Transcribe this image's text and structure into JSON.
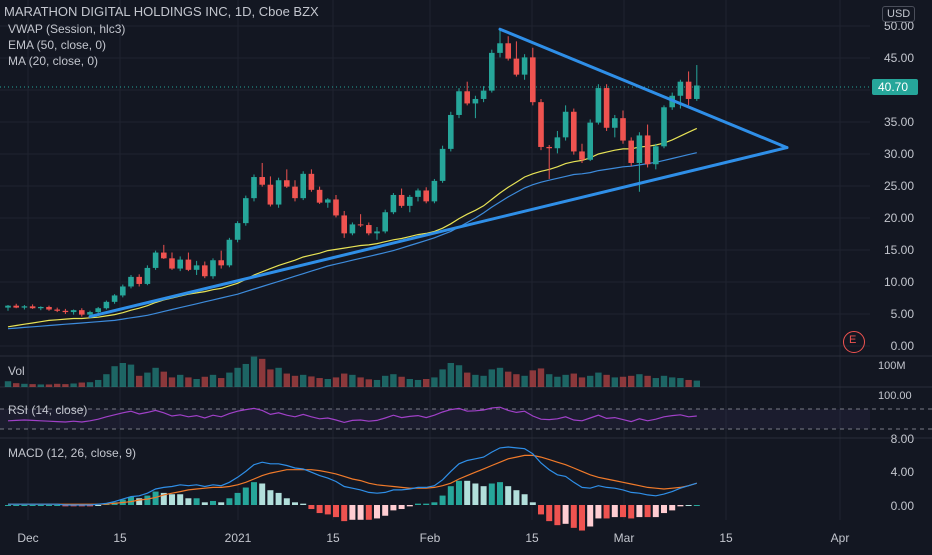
{
  "header": {
    "title": "MARATHON DIGITAL HOLDINGS INC, 1D, Cboe BZX",
    "indicators": [
      "VWAP (Session, hlc3)",
      "EMA (50, close, 0)",
      "MA (20, close, 0)"
    ],
    "currency": "USD",
    "last_price": "40.70",
    "earnings_marker": "E"
  },
  "panes": {
    "vol_label": "Vol",
    "vol_axis": "100M",
    "rsi_label": "RSI (14, close)",
    "rsi_axis": "100.00",
    "macd_label": "MACD (12, 26, close, 9)"
  },
  "colors": {
    "background": "#131722",
    "up": "#26a69a",
    "down": "#ef5350",
    "trendline": "#2f8fe8",
    "ema": "#e7e356",
    "ma": "#3d8bdb",
    "rsi": "#a040c8",
    "macd_line": "#2f8fe8",
    "signal_line": "#f07a2a"
  },
  "chart_data": {
    "type": "candlestick",
    "y_axis_ticks": [
      "50.00",
      "45.00",
      "40.00",
      "35.00",
      "30.00",
      "25.00",
      "20.00",
      "15.00",
      "10.00",
      "5.00",
      "0.00"
    ],
    "x_axis_ticks": [
      "Dec",
      "15",
      "2021",
      "15",
      "Feb",
      "15",
      "Mar",
      "15",
      "Apr"
    ],
    "macd_axis_ticks": [
      "8.00",
      "4.00",
      "0.00"
    ],
    "candles": [
      [
        6.0,
        6.4,
        5.5,
        6.3
      ],
      [
        6.3,
        6.6,
        5.9,
        6.0
      ],
      [
        6.0,
        6.4,
        5.7,
        6.2
      ],
      [
        6.2,
        6.5,
        5.8,
        5.9
      ],
      [
        5.9,
        6.2,
        5.6,
        6.1
      ],
      [
        6.1,
        6.3,
        5.5,
        5.7
      ],
      [
        5.7,
        6.0,
        5.3,
        5.5
      ],
      [
        5.5,
        5.8,
        5.0,
        5.3
      ],
      [
        5.3,
        5.7,
        4.9,
        5.6
      ],
      [
        5.6,
        5.9,
        4.6,
        4.9
      ],
      [
        4.9,
        5.5,
        4.6,
        5.3
      ],
      [
        5.3,
        6.1,
        5.1,
        5.9
      ],
      [
        5.9,
        7.1,
        5.7,
        6.9
      ],
      [
        6.9,
        8.1,
        6.6,
        7.9
      ],
      [
        7.9,
        9.6,
        7.6,
        9.3
      ],
      [
        9.3,
        11.1,
        9.0,
        10.8
      ],
      [
        10.8,
        11.2,
        9.3,
        9.7
      ],
      [
        9.7,
        12.6,
        9.5,
        12.2
      ],
      [
        12.2,
        14.9,
        11.9,
        14.6
      ],
      [
        14.6,
        15.8,
        13.6,
        13.7
      ],
      [
        13.7,
        14.6,
        11.9,
        12.1
      ],
      [
        12.1,
        14.0,
        11.7,
        13.5
      ],
      [
        13.5,
        14.6,
        11.7,
        11.9
      ],
      [
        11.9,
        13.3,
        11.1,
        12.6
      ],
      [
        12.6,
        13.2,
        10.6,
        10.9
      ],
      [
        10.9,
        13.7,
        10.5,
        13.4
      ],
      [
        13.4,
        14.9,
        12.1,
        12.6
      ],
      [
        12.6,
        16.9,
        12.3,
        16.6
      ],
      [
        16.6,
        19.5,
        16.2,
        19.2
      ],
      [
        19.2,
        23.5,
        18.8,
        23.1
      ],
      [
        23.1,
        26.8,
        22.6,
        26.4
      ],
      [
        26.4,
        28.6,
        24.9,
        25.2
      ],
      [
        25.2,
        26.5,
        21.8,
        22.1
      ],
      [
        22.1,
        26.3,
        21.6,
        25.9
      ],
      [
        25.9,
        27.6,
        24.7,
        24.9
      ],
      [
        24.9,
        25.9,
        22.6,
        23.1
      ],
      [
        23.1,
        27.3,
        22.8,
        26.9
      ],
      [
        26.9,
        27.6,
        24.1,
        24.4
      ],
      [
        24.4,
        24.9,
        22.2,
        22.4
      ],
      [
        22.4,
        23.1,
        21.6,
        22.9
      ],
      [
        22.9,
        23.6,
        20.1,
        20.4
      ],
      [
        20.4,
        21.1,
        16.9,
        17.6
      ],
      [
        17.6,
        19.3,
        17.3,
        19.0
      ],
      [
        19.0,
        20.6,
        18.6,
        18.9
      ],
      [
        18.9,
        19.3,
        17.3,
        17.6
      ],
      [
        17.6,
        18.6,
        16.6,
        17.9
      ],
      [
        17.9,
        21.3,
        17.6,
        20.9
      ],
      [
        20.9,
        23.9,
        20.6,
        23.6
      ],
      [
        23.6,
        24.6,
        21.6,
        21.9
      ],
      [
        21.9,
        23.6,
        20.9,
        23.3
      ],
      [
        23.3,
        24.6,
        22.6,
        24.3
      ],
      [
        24.3,
        24.8,
        22.3,
        22.6
      ],
      [
        22.6,
        26.1,
        22.3,
        25.8
      ],
      [
        25.8,
        31.3,
        25.5,
        30.8
      ],
      [
        30.8,
        36.6,
        30.4,
        36.1
      ],
      [
        36.1,
        40.3,
        35.6,
        39.8
      ],
      [
        39.8,
        41.3,
        37.6,
        37.9
      ],
      [
        37.9,
        39.1,
        35.6,
        38.6
      ],
      [
        38.6,
        40.6,
        38.1,
        39.9
      ],
      [
        39.9,
        46.3,
        39.6,
        45.8
      ],
      [
        45.8,
        49.6,
        45.1,
        47.3
      ],
      [
        47.3,
        48.4,
        44.6,
        44.9
      ],
      [
        44.9,
        47.6,
        42.1,
        42.4
      ],
      [
        42.4,
        45.6,
        41.6,
        45.1
      ],
      [
        45.1,
        46.6,
        37.6,
        38.1
      ],
      [
        38.1,
        38.6,
        30.6,
        31.1
      ],
      [
        31.1,
        31.4,
        26.1,
        30.9
      ],
      [
        30.9,
        33.6,
        30.1,
        32.6
      ],
      [
        32.6,
        37.6,
        32.1,
        36.6
      ],
      [
        36.6,
        37.1,
        29.9,
        30.4
      ],
      [
        30.4,
        31.6,
        28.6,
        29.1
      ],
      [
        29.1,
        35.4,
        28.9,
        34.9
      ],
      [
        34.9,
        40.9,
        34.6,
        40.3
      ],
      [
        40.3,
        40.9,
        33.6,
        34.1
      ],
      [
        34.1,
        36.1,
        32.6,
        35.6
      ],
      [
        35.6,
        36.8,
        31.6,
        32.1
      ],
      [
        32.1,
        32.6,
        28.1,
        28.6
      ],
      [
        28.6,
        33.4,
        24.1,
        32.9
      ],
      [
        32.9,
        34.6,
        27.9,
        28.4
      ],
      [
        28.4,
        31.6,
        27.6,
        31.2
      ],
      [
        31.2,
        37.6,
        30.9,
        37.3
      ],
      [
        37.3,
        39.6,
        36.9,
        39.1
      ],
      [
        39.1,
        41.6,
        37.1,
        41.3
      ],
      [
        41.3,
        42.9,
        37.6,
        38.6
      ],
      [
        38.6,
        43.9,
        38.3,
        40.7
      ]
    ],
    "ema50": [
      3.0,
      3.2,
      3.4,
      3.6,
      3.8,
      4.0,
      4.1,
      4.2,
      4.3,
      4.3,
      4.4,
      4.5,
      4.7,
      4.9,
      5.2,
      5.6,
      5.9,
      6.3,
      6.8,
      7.2,
      7.5,
      7.8,
      8.1,
      8.3,
      8.5,
      8.8,
      9.0,
      9.4,
      9.8,
      10.4,
      11.1,
      11.6,
      12.1,
      12.6,
      13.0,
      13.4,
      13.9,
      14.2,
      14.5,
      14.9,
      15.1,
      15.3,
      15.5,
      15.7,
      15.8,
      16.0,
      16.3,
      16.6,
      16.8,
      17.1,
      17.4,
      17.6,
      17.9,
      18.4,
      19.1,
      19.9,
      20.6,
      21.2,
      21.9,
      22.9,
      23.9,
      24.8,
      25.6,
      26.4,
      26.9,
      27.3,
      27.6,
      28.0,
      28.5,
      28.8,
      29.0,
      29.4,
      30.0,
      30.3,
      30.6,
      30.8,
      30.8,
      31.1,
      31.2,
      31.4,
      31.7,
      32.2,
      32.8,
      33.4,
      34.0
    ],
    "ma20": [
      2.7,
      2.8,
      2.9,
      3.0,
      3.1,
      3.2,
      3.3,
      3.4,
      3.5,
      3.6,
      3.7,
      3.8,
      3.9,
      4.0,
      4.2,
      4.4,
      4.6,
      4.8,
      5.1,
      5.4,
      5.7,
      6.0,
      6.3,
      6.6,
      6.9,
      7.2,
      7.5,
      7.8,
      8.1,
      8.5,
      8.9,
      9.3,
      9.7,
      10.1,
      10.5,
      10.9,
      11.3,
      11.7,
      12.1,
      12.5,
      12.8,
      13.1,
      13.4,
      13.7,
      14.0,
      14.3,
      14.6,
      14.9,
      15.3,
      15.7,
      16.1,
      16.5,
      16.9,
      17.4,
      17.9,
      18.6,
      19.3,
      20.0,
      20.8,
      21.7,
      22.5,
      23.3,
      24.0,
      24.7,
      25.2,
      25.6,
      25.9,
      26.2,
      26.5,
      26.8,
      26.9,
      27.1,
      27.4,
      27.6,
      27.8,
      28.0,
      28.1,
      28.3,
      28.5,
      28.7,
      29.0,
      29.3,
      29.6,
      29.9,
      30.2
    ],
    "trendlines": [
      {
        "from": [
          10,
          4.6
        ],
        "to": [
          95,
          31.0
        ]
      },
      {
        "from": [
          60,
          49.5
        ],
        "to": [
          95,
          31.0
        ]
      }
    ],
    "volume": [
      [
        18,
        1
      ],
      [
        12,
        0
      ],
      [
        10,
        1
      ],
      [
        9,
        0
      ],
      [
        8,
        1
      ],
      [
        8,
        0
      ],
      [
        10,
        0
      ],
      [
        9,
        0
      ],
      [
        11,
        1
      ],
      [
        14,
        0
      ],
      [
        15,
        1
      ],
      [
        22,
        1
      ],
      [
        40,
        1
      ],
      [
        65,
        1
      ],
      [
        75,
        1
      ],
      [
        70,
        1
      ],
      [
        35,
        0
      ],
      [
        45,
        1
      ],
      [
        60,
        1
      ],
      [
        48,
        0
      ],
      [
        30,
        0
      ],
      [
        38,
        1
      ],
      [
        30,
        0
      ],
      [
        25,
        1
      ],
      [
        32,
        0
      ],
      [
        38,
        1
      ],
      [
        28,
        0
      ],
      [
        45,
        1
      ],
      [
        60,
        1
      ],
      [
        72,
        1
      ],
      [
        95,
        1
      ],
      [
        88,
        0
      ],
      [
        55,
        0
      ],
      [
        60,
        1
      ],
      [
        42,
        0
      ],
      [
        35,
        0
      ],
      [
        38,
        1
      ],
      [
        33,
        0
      ],
      [
        28,
        0
      ],
      [
        25,
        1
      ],
      [
        30,
        0
      ],
      [
        42,
        0
      ],
      [
        38,
        1
      ],
      [
        30,
        0
      ],
      [
        24,
        0
      ],
      [
        22,
        1
      ],
      [
        35,
        1
      ],
      [
        40,
        1
      ],
      [
        32,
        0
      ],
      [
        25,
        1
      ],
      [
        22,
        1
      ],
      [
        25,
        0
      ],
      [
        30,
        1
      ],
      [
        55,
        1
      ],
      [
        75,
        1
      ],
      [
        68,
        1
      ],
      [
        45,
        0
      ],
      [
        38,
        1
      ],
      [
        35,
        1
      ],
      [
        55,
        1
      ],
      [
        60,
        1
      ],
      [
        48,
        0
      ],
      [
        40,
        0
      ],
      [
        35,
        1
      ],
      [
        52,
        0
      ],
      [
        58,
        0
      ],
      [
        40,
        1
      ],
      [
        32,
        1
      ],
      [
        38,
        1
      ],
      [
        42,
        0
      ],
      [
        30,
        0
      ],
      [
        35,
        1
      ],
      [
        45,
        1
      ],
      [
        38,
        0
      ],
      [
        30,
        1
      ],
      [
        32,
        0
      ],
      [
        35,
        0
      ],
      [
        40,
        1
      ],
      [
        35,
        0
      ],
      [
        28,
        1
      ],
      [
        35,
        1
      ],
      [
        30,
        1
      ],
      [
        28,
        1
      ],
      [
        22,
        0
      ],
      [
        20,
        1
      ]
    ],
    "rsi": [
      48,
      49,
      50,
      49,
      48,
      47,
      46,
      45,
      47,
      45,
      48,
      52,
      58,
      63,
      68,
      72,
      65,
      69,
      74,
      68,
      60,
      63,
      58,
      61,
      55,
      62,
      58,
      66,
      72,
      76,
      79,
      74,
      64,
      68,
      62,
      58,
      64,
      58,
      53,
      55,
      50,
      44,
      49,
      50,
      47,
      49,
      55,
      62,
      56,
      59,
      61,
      56,
      62,
      70,
      76,
      79,
      72,
      73,
      75,
      80,
      82,
      74,
      69,
      72,
      60,
      52,
      51,
      53,
      58,
      50,
      48,
      55,
      62,
      54,
      56,
      51,
      46,
      53,
      48,
      52,
      58,
      61,
      63,
      58,
      60
    ],
    "macd": [
      0.1,
      0.1,
      0.1,
      0.1,
      0.1,
      0.1,
      0.1,
      0.0,
      0.0,
      0.0,
      0.0,
      0.1,
      0.2,
      0.4,
      0.7,
      1.0,
      1.1,
      1.4,
      1.9,
      2.1,
      2.2,
      2.4,
      2.3,
      2.4,
      2.2,
      2.4,
      2.3,
      2.7,
      3.3,
      4.0,
      4.8,
      5.1,
      4.9,
      4.9,
      4.7,
      4.4,
      4.3,
      3.9,
      3.5,
      3.2,
      2.8,
      2.2,
      2.0,
      1.8,
      1.5,
      1.4,
      1.5,
      1.8,
      1.8,
      1.9,
      2.1,
      2.1,
      2.3,
      3.0,
      4.0,
      4.9,
      5.3,
      5.5,
      5.7,
      6.3,
      6.8,
      6.9,
      6.8,
      6.7,
      6.1,
      5.0,
      4.2,
      3.6,
      3.4,
      2.7,
      2.1,
      2.0,
      2.3,
      2.1,
      2.0,
      1.8,
      1.5,
      1.4,
      1.2,
      1.1,
      1.3,
      1.6,
      2.0,
      2.3,
      2.6
    ],
    "signal": [
      0.1,
      0.1,
      0.1,
      0.1,
      0.1,
      0.1,
      0.1,
      0.1,
      0.1,
      0.1,
      0.1,
      0.1,
      0.1,
      0.2,
      0.3,
      0.4,
      0.6,
      0.7,
      0.9,
      1.2,
      1.4,
      1.6,
      1.8,
      1.9,
      2.0,
      2.1,
      2.1,
      2.2,
      2.4,
      2.7,
      3.1,
      3.5,
      3.8,
      4.0,
      4.2,
      4.2,
      4.2,
      4.2,
      4.1,
      3.9,
      3.7,
      3.4,
      3.1,
      2.9,
      2.6,
      2.4,
      2.3,
      2.2,
      2.1,
      2.0,
      2.0,
      2.0,
      2.1,
      2.3,
      2.6,
      3.1,
      3.5,
      3.9,
      4.3,
      4.7,
      5.1,
      5.5,
      5.7,
      5.9,
      5.9,
      5.7,
      5.4,
      5.1,
      4.8,
      4.4,
      4.0,
      3.6,
      3.3,
      3.1,
      2.9,
      2.7,
      2.5,
      2.3,
      2.1,
      2.0,
      1.9,
      2.0,
      2.1,
      2.3,
      2.6
    ]
  }
}
